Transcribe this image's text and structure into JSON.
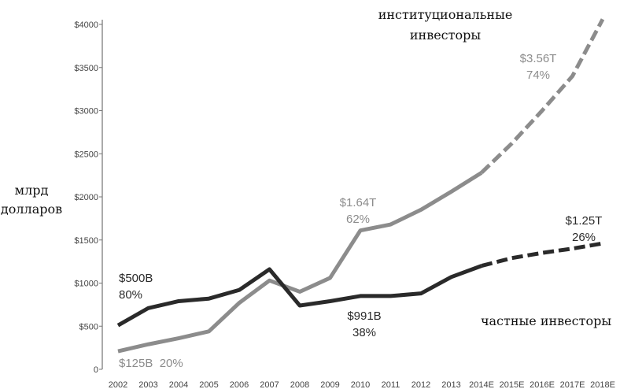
{
  "chart_data": {
    "type": "line",
    "ylabel_lines": [
      "млрд",
      "долларов"
    ],
    "ylim": [
      0,
      4000
    ],
    "yticks": [
      0,
      500,
      1000,
      1500,
      2000,
      2500,
      3000,
      3500,
      4000
    ],
    "ytick_labels": [
      "0",
      "$500",
      "$1000",
      "$1500",
      "$2000",
      "$2500",
      "$3000",
      "$3500",
      "$4000"
    ],
    "categories": [
      "2002",
      "2003",
      "2004",
      "2005",
      "2006",
      "2007",
      "2008",
      "2009",
      "2010",
      "2011",
      "2012",
      "2013",
      "2014E",
      "2015E",
      "2016E",
      "2017E",
      "2018E"
    ],
    "grid": false,
    "series": [
      {
        "name": "институциональные инвесторы",
        "color": "#8c8c8c",
        "values": [
          210,
          290,
          360,
          440,
          770,
          1030,
          900,
          1060,
          1610,
          1680,
          1850,
          2060,
          2280,
          2620,
          3000,
          3400,
          4060
        ],
        "projected_from_index": 12
      },
      {
        "name": "частные инвесторы",
        "color": "#2a2a2a",
        "values": [
          510,
          710,
          790,
          820,
          920,
          1160,
          740,
          790,
          850,
          850,
          880,
          1070,
          1200,
          1290,
          1350,
          1400,
          1460
        ],
        "projected_from_index": 12
      }
    ],
    "series_labels": {
      "institutional": [
        "институциональные",
        "инвесторы"
      ],
      "private": "частные инвесторы"
    },
    "annotations": [
      {
        "lines": [
          "$500B",
          "80%"
        ],
        "color": "#2a2a2a"
      },
      {
        "lines": [
          "$125B  20%"
        ],
        "color": "#8c8c8c"
      },
      {
        "lines": [
          "$1.64T",
          "62%"
        ],
        "color": "#8c8c8c"
      },
      {
        "lines": [
          "$991B",
          "38%"
        ],
        "color": "#2a2a2a"
      },
      {
        "lines": [
          "$3.56T",
          "74%"
        ],
        "color": "#8c8c8c"
      },
      {
        "lines": [
          "$1.25T",
          "26%"
        ],
        "color": "#2a2a2a"
      }
    ]
  }
}
